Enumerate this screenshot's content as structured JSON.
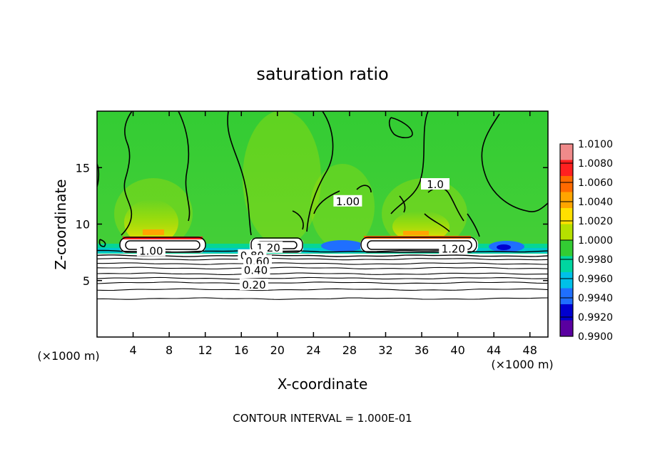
{
  "chart_data": {
    "type": "heatmap",
    "title": "saturation ratio",
    "xlabel": "X-coordinate",
    "ylabel": "Z-coordinate",
    "x_unit_left": "(×1000 m)",
    "x_unit_right": "(×1000 m)",
    "xlim": [
      0,
      50
    ],
    "ylim": [
      0,
      20
    ],
    "x_ticks": [
      4,
      8,
      12,
      16,
      20,
      24,
      28,
      32,
      36,
      40,
      44,
      48
    ],
    "y_ticks": [
      5,
      10,
      15
    ],
    "footer": "CONTOUR INTERVAL = 1.000E-01",
    "colorbar": {
      "labels": [
        "1.0100",
        "1.0080",
        "1.0060",
        "1.0040",
        "1.0020",
        "1.0000",
        "0.9980",
        "0.9960",
        "0.9940",
        "0.9920",
        "0.9900"
      ],
      "colors": [
        "#f08a8a",
        "#ff2020",
        "#ff6a00",
        "#ffa500",
        "#ffe000",
        "#b5e000",
        "#33cc33",
        "#00d6a0",
        "#00c0e8",
        "#1f6fff",
        "#0000d0",
        "#5a00a0"
      ]
    },
    "contour_labels": [
      {
        "text": "1.00",
        "x": 6.0,
        "y": 7.6
      },
      {
        "text": "1.20",
        "x": 39.5,
        "y": 7.8
      },
      {
        "text": "1.00",
        "x": 27.8,
        "y": 12.0
      },
      {
        "text": "1.0",
        "x": 37.5,
        "y": 13.5
      },
      {
        "text": "1.20",
        "x": 19.0,
        "y": 7.9
      },
      {
        "text": "0.80",
        "x": 17.2,
        "y": 7.2
      },
      {
        "text": "0.60",
        "x": 17.8,
        "y": 6.7
      },
      {
        "text": "0.40",
        "x": 17.6,
        "y": 5.9
      },
      {
        "text": "0.20",
        "x": 17.4,
        "y": 4.6
      }
    ],
    "contour_levels_z": [
      7.6,
      7.2,
      6.9,
      6.5,
      6.1,
      5.6,
      5.2,
      4.8,
      4.2,
      3.4
    ]
  }
}
